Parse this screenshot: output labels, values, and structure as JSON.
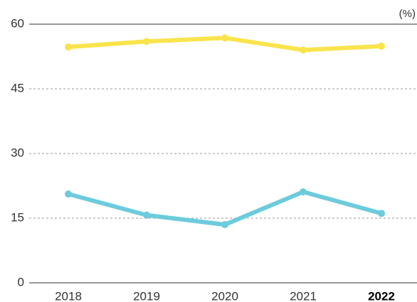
{
  "chart_data": {
    "type": "line",
    "unit": "(%)",
    "categories": [
      "2018",
      "2019",
      "2020",
      "2021",
      "2022"
    ],
    "series": [
      {
        "color": "#f9e44c",
        "values": [
          54.7,
          56.0,
          56.8,
          54.0,
          54.9
        ]
      },
      {
        "color": "#6ccbdc",
        "values": [
          20.6,
          15.7,
          13.5,
          21.1,
          16.1
        ]
      }
    ],
    "ylim": [
      0,
      60
    ],
    "yticks": [
      0,
      15,
      30,
      45,
      60
    ],
    "grid": true
  }
}
